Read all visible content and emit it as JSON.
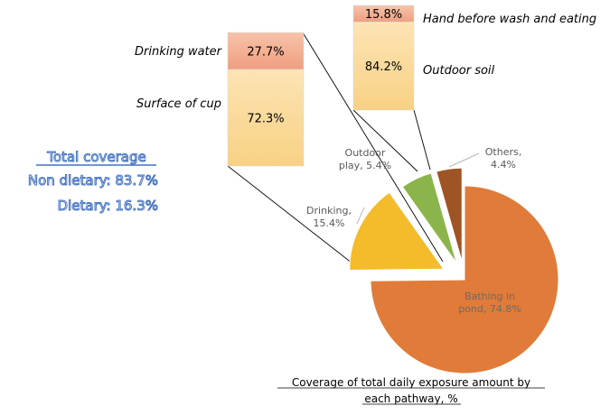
{
  "summary": {
    "title": "Total coverage",
    "line1": "Non dietary: 83.7%",
    "line2": "Dietary: 16.3%"
  },
  "caption": {
    "line1": "Coverage of total daily exposure amount by",
    "line2": "each pathway, %"
  },
  "chart_data": [
    {
      "type": "pie",
      "title": "Coverage of total daily exposure amount by each pathway, %",
      "slices": [
        {
          "name": "Bathing in pond",
          "value": 74.8,
          "label_l1": "Bathing in",
          "label_l2": "pond, 74.8%",
          "color": "#e07b39"
        },
        {
          "name": "Drinking",
          "value": 15.4,
          "label_l1": "Drinking,",
          "label_l2": "15.4%",
          "color": "#f4bb2a"
        },
        {
          "name": "Outdoor play",
          "value": 5.4,
          "label_l1": "Outdoor",
          "label_l2": "play, 5.4%",
          "color": "#8bb44a"
        },
        {
          "name": "Others",
          "value": 4.4,
          "label_l1": "Others,",
          "label_l2": "4.4%",
          "color": "#9e5424"
        }
      ]
    },
    {
      "type": "bar",
      "stacked": true,
      "breakdown_of": "Drinking",
      "segments": [
        {
          "name": "Drinking water",
          "value": 27.7,
          "label": "27.7%",
          "color": "#f2a98a"
        },
        {
          "name": "Surface of cup",
          "value": 72.3,
          "label": "72.3%",
          "color": "#f9d98c"
        }
      ]
    },
    {
      "type": "bar",
      "stacked": true,
      "breakdown_of": "Outdoor play",
      "segments": [
        {
          "name": "Hand before wash and eating",
          "value": 15.8,
          "label": "15.8%",
          "color": "#f2a98a"
        },
        {
          "name": "Outdoor soil",
          "value": 84.2,
          "label": "84.2%",
          "color": "#f9d98c"
        }
      ]
    }
  ]
}
